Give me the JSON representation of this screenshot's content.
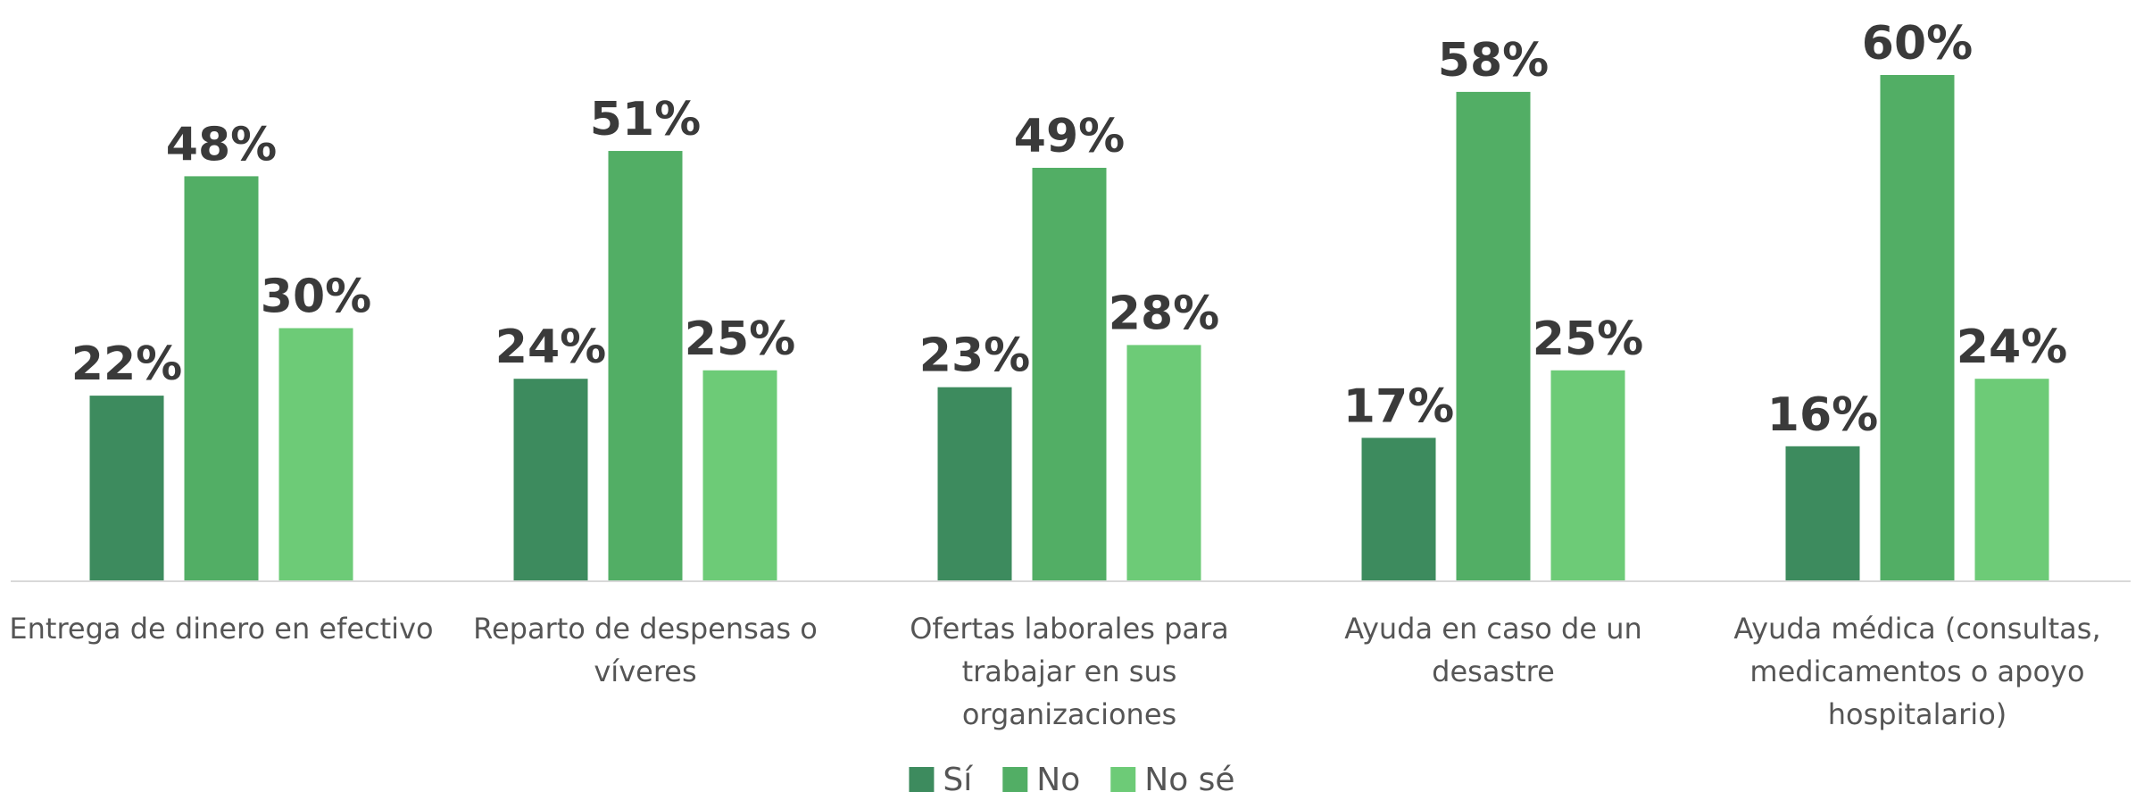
{
  "chart_data": {
    "type": "bar",
    "categories": [
      "Entrega de dinero en efectivo",
      "Reparto de despensas o víveres",
      "Ofertas laborales para trabajar en sus organizaciones",
      "Ayuda en caso de un desastre",
      "Ayuda médica (consultas, medicamentos o apoyo hospitalario)"
    ],
    "series": [
      {
        "name": "Sí",
        "color": "#3d8b5e",
        "values": [
          22,
          24,
          23,
          17,
          16
        ],
        "value_labels": [
          "22%",
          "24%",
          "23%",
          "17%",
          "16%"
        ]
      },
      {
        "name": "No",
        "color": "#52ae65",
        "values": [
          48,
          51,
          49,
          58,
          60
        ],
        "value_labels": [
          "48%",
          "51%",
          "49%",
          "58%",
          "60%"
        ]
      },
      {
        "name": "No sé",
        "color": "#6dcb77",
        "values": [
          30,
          25,
          28,
          25,
          24
        ],
        "value_labels": [
          "30%",
          "25%",
          "28%",
          "25%",
          "24%"
        ]
      }
    ],
    "ylim": [
      0,
      60
    ],
    "legend": "bottom"
  }
}
